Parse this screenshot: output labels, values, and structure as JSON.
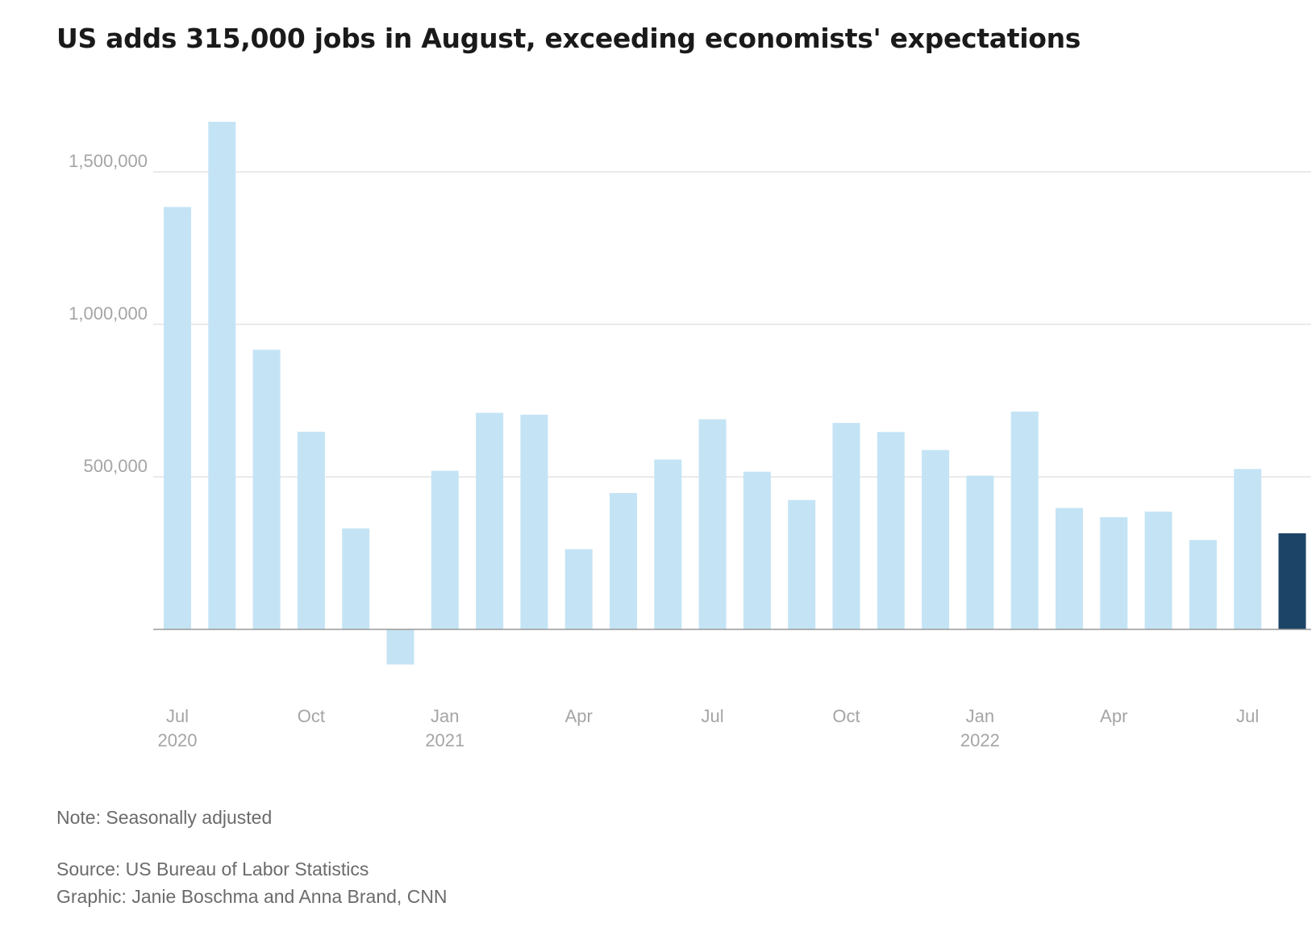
{
  "title": "US adds 315,000 jobs in August, exceeding economists' expectations",
  "note": "Note: Seasonally adjusted",
  "source": "Source: US Bureau of Labor Statistics",
  "graphic": "Graphic: Janie Boschma and Anna Brand, CNN",
  "colors": {
    "bar": "#c4e4f5",
    "highlight": "#1c4467",
    "grid": "#e3e3e3",
    "baseline": "#9a9a9a",
    "tick_text": "#a5a5a5"
  },
  "chart_data": {
    "type": "bar",
    "categories": [
      "Jul 2020",
      "Aug 2020",
      "Sep 2020",
      "Oct 2020",
      "Nov 2020",
      "Dec 2020",
      "Jan 2021",
      "Feb 2021",
      "Mar 2021",
      "Apr 2021",
      "May 2021",
      "Jun 2021",
      "Jul 2021",
      "Aug 2021",
      "Sep 2021",
      "Oct 2021",
      "Nov 2021",
      "Dec 2021",
      "Jan 2022",
      "Feb 2022",
      "Mar 2022",
      "Apr 2022",
      "May 2022",
      "Jun 2022",
      "Jul 2022",
      "Aug 2022"
    ],
    "values": [
      1385000,
      1664000,
      917000,
      648000,
      331000,
      -115000,
      520000,
      710000,
      704000,
      263000,
      447000,
      557000,
      689000,
      517000,
      424000,
      677000,
      647000,
      588000,
      504000,
      714000,
      398000,
      368000,
      386000,
      293000,
      526000,
      315000
    ],
    "highlight_index": 25,
    "ylim": [
      -200000,
      1800000
    ],
    "yticks": [
      500000,
      1000000,
      1500000
    ],
    "ytick_labels": [
      "500,000",
      "1,000,000",
      "1,500,000"
    ],
    "xticks": [
      {
        "index": 0,
        "month": "Jul",
        "year": "2020"
      },
      {
        "index": 3,
        "month": "Oct",
        "year": ""
      },
      {
        "index": 6,
        "month": "Jan",
        "year": "2021"
      },
      {
        "index": 9,
        "month": "Apr",
        "year": ""
      },
      {
        "index": 12,
        "month": "Jul",
        "year": ""
      },
      {
        "index": 15,
        "month": "Oct",
        "year": ""
      },
      {
        "index": 18,
        "month": "Jan",
        "year": "2022"
      },
      {
        "index": 21,
        "month": "Apr",
        "year": ""
      },
      {
        "index": 24,
        "month": "Jul",
        "year": ""
      }
    ],
    "grid": true,
    "xlabel": "",
    "ylabel": ""
  }
}
